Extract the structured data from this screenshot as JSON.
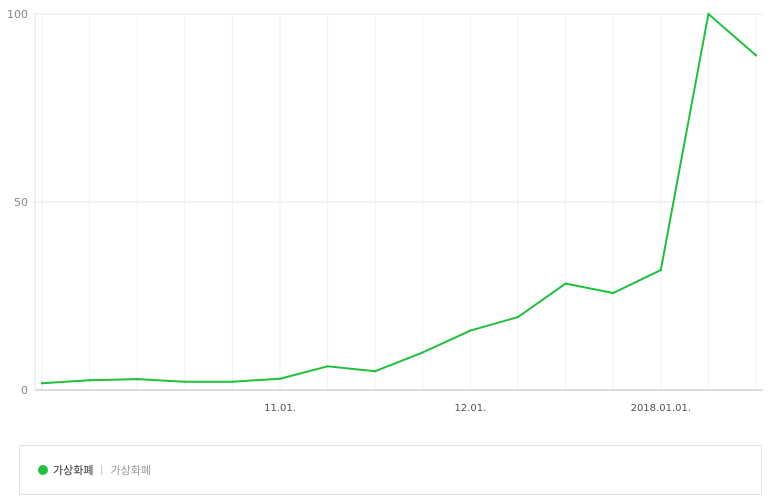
{
  "chart_data": {
    "type": "line",
    "x": [
      "",
      "",
      "",
      "",
      "",
      "11.01.",
      "",
      "",
      "",
      "12.01.",
      "",
      "",
      "",
      "2018.01.01.",
      "",
      ""
    ],
    "series": [
      {
        "name": "가상화폐",
        "color": "#1ec13b",
        "values": [
          1.8,
          2.6,
          2.9,
          2.2,
          2.2,
          3.0,
          6.3,
          5.0,
          10.0,
          15.8,
          19.4,
          28.3,
          25.8,
          31.9,
          100,
          89
        ]
      }
    ],
    "yticks": [
      0,
      50,
      100
    ],
    "ylim": [
      0,
      100
    ],
    "grid": true
  },
  "legend": {
    "name": "가상화폐",
    "description": "가상화폐"
  }
}
